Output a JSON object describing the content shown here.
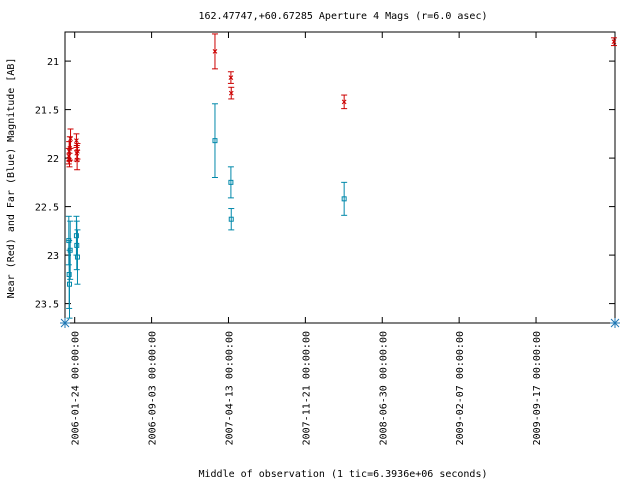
{
  "chart_data": {
    "type": "scatter",
    "title": "162.47747,+60.67285   Aperture 4 Mags (r=6.0 asec)",
    "xlabel": "Middle of observation (1 tic=6.3936e+06 seconds)",
    "ylabel": "Near (Red) and Far (Blue) Magnitude [AB]",
    "x_type": "date",
    "xlim": [
      "2005-12-27",
      "2010-05-03"
    ],
    "ylim": [
      23.7,
      20.7
    ],
    "y_inverted": true,
    "x_ticks": [
      "2006-01-24 00:00:00",
      "2006-09-03 00:00:00",
      "2007-04-13 00:00:00",
      "2007-11-21 00:00:00",
      "2008-06-30 00:00:00",
      "2009-02-07 00:00:00",
      "2009-09-17 00:00:00"
    ],
    "y_ticks": [
      21,
      21.5,
      22,
      22.5,
      23,
      23.5
    ],
    "colors": {
      "near": "#cc0000",
      "far": "#0088aa",
      "marker": "#1f77b4"
    },
    "series": [
      {
        "name": "Near",
        "color": "#cc0000",
        "marker": "x",
        "points": [
          {
            "x": "2006-01-07",
            "y": 21.98,
            "err": 0.08
          },
          {
            "x": "2006-01-08",
            "y": 21.93,
            "err": 0.1
          },
          {
            "x": "2006-01-09",
            "y": 22.02,
            "err": 0.07
          },
          {
            "x": "2006-01-10",
            "y": 21.9,
            "err": 0.12
          },
          {
            "x": "2006-01-12",
            "y": 21.8,
            "err": 0.1
          },
          {
            "x": "2006-01-29",
            "y": 21.82,
            "err": 0.07
          },
          {
            "x": "2006-01-30",
            "y": 21.95,
            "err": 0.08
          },
          {
            "x": "2006-01-31",
            "y": 22.02,
            "err": 0.1
          },
          {
            "x": "2006-02-01",
            "y": 21.93,
            "err": 0.08
          },
          {
            "x": "2007-03-05",
            "y": 20.9,
            "err": 0.18
          },
          {
            "x": "2007-04-20",
            "y": 21.17,
            "err": 0.06
          },
          {
            "x": "2007-04-21",
            "y": 21.33,
            "err": 0.06
          },
          {
            "x": "2008-03-12",
            "y": 21.42,
            "err": 0.07
          },
          {
            "x": "2010-04-30",
            "y": 20.8,
            "err": 0.04
          }
        ]
      },
      {
        "name": "Far",
        "color": "#0088aa",
        "marker": "square",
        "points": [
          {
            "x": "2006-01-07",
            "y": 22.85,
            "err": 0.25
          },
          {
            "x": "2006-01-08",
            "y": 23.2,
            "err": 0.35
          },
          {
            "x": "2006-01-09",
            "y": 23.3,
            "err": 0.35
          },
          {
            "x": "2006-01-11",
            "y": 22.95,
            "err": 0.3
          },
          {
            "x": "2006-01-29",
            "y": 22.8,
            "err": 0.2
          },
          {
            "x": "2006-01-30",
            "y": 22.9,
            "err": 0.25
          },
          {
            "x": "2006-02-01",
            "y": 23.02,
            "err": 0.28
          },
          {
            "x": "2007-03-05",
            "y": 21.82,
            "err": 0.38
          },
          {
            "x": "2007-04-20",
            "y": 22.25,
            "err": 0.16
          },
          {
            "x": "2007-04-21",
            "y": 22.63,
            "err": 0.11
          },
          {
            "x": "2008-03-12",
            "y": 22.42,
            "err": 0.17
          }
        ]
      }
    ],
    "edge_markers": [
      {
        "x": "2005-12-27",
        "y": 23.7
      },
      {
        "x": "2010-05-03",
        "y": 23.7
      }
    ]
  }
}
